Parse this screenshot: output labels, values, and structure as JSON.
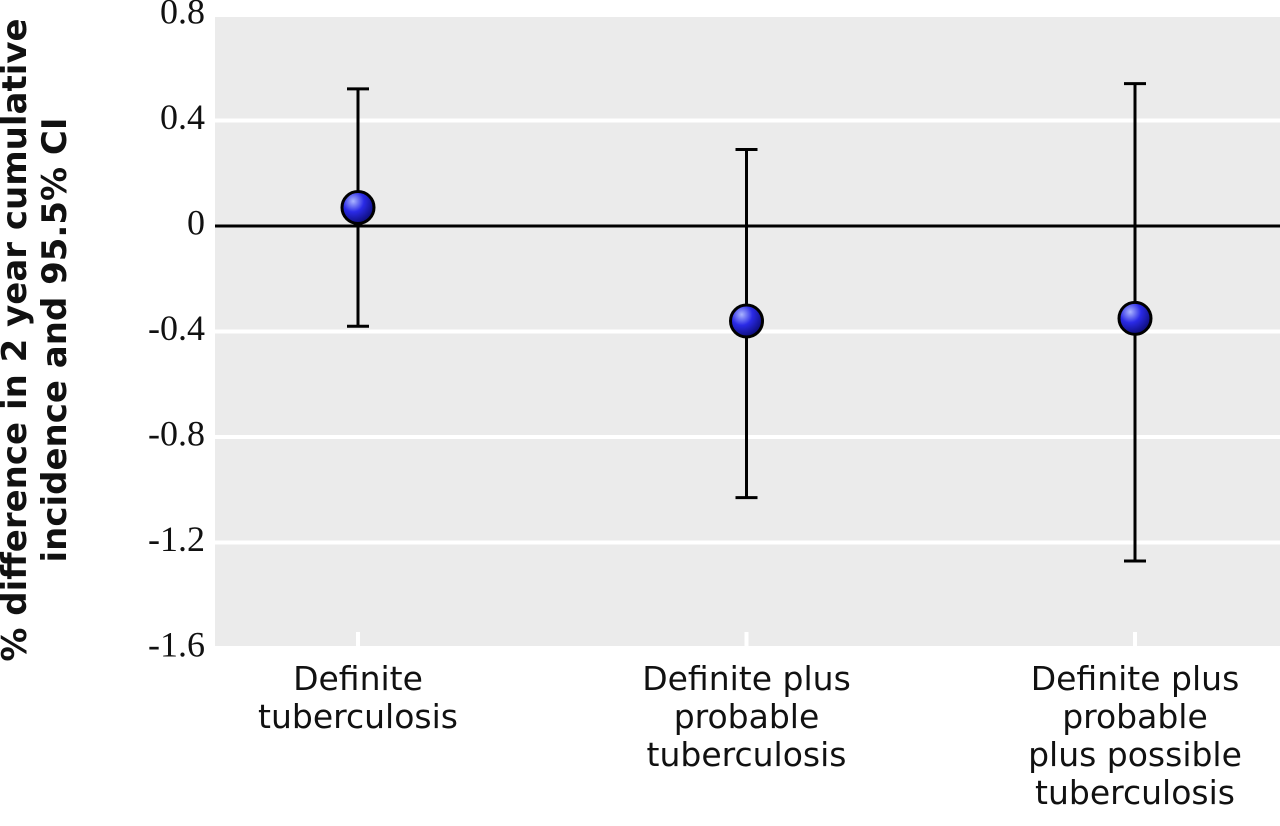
{
  "chart_data": {
    "type": "errorbar",
    "ylabel": "% difference in 2 year cumulative\nincidence and 95.5% CI",
    "categories": [
      "Definite\ntuberculosis",
      "Definite plus\nprobable\ntuberculosis",
      "Definite plus\nprobable\nplus possible\ntuberculosis"
    ],
    "values": [
      0.07,
      -0.36,
      -0.35
    ],
    "lower": [
      -0.38,
      -1.03,
      -1.27
    ],
    "upper": [
      0.52,
      0.29,
      0.54
    ],
    "color": "#2020e0",
    "ylim": [
      -1.6,
      0.8
    ],
    "yticks": [
      -1.6,
      -1.2,
      -0.8,
      -0.4,
      0,
      0.4,
      0.8
    ],
    "grid": true
  }
}
